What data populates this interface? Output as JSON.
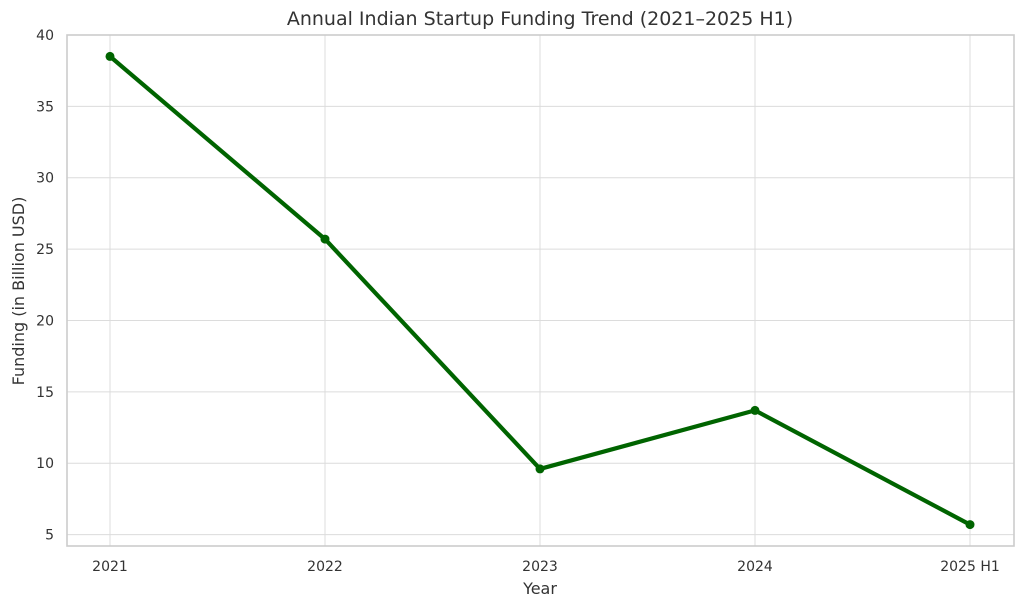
{
  "chart_data": {
    "type": "line",
    "title": "Annual Indian Startup Funding Trend (2021–2025 H1)",
    "xlabel": "Year",
    "ylabel": "Funding (in Billion USD)",
    "categories": [
      "2021",
      "2022",
      "2023",
      "2024",
      "2025 H1"
    ],
    "series": [
      {
        "values": [
          38.5,
          25.7,
          9.6,
          13.7,
          5.7
        ],
        "color": "#006400"
      }
    ],
    "ylim": [
      4.2,
      40
    ],
    "yticks": [
      5,
      10,
      15,
      20,
      25,
      30,
      35,
      40
    ],
    "grid": true,
    "markers": true,
    "colors": {
      "line": "#006400",
      "grid": "#dcdcdc",
      "frame": "#cccccc",
      "text": "#333333"
    }
  }
}
